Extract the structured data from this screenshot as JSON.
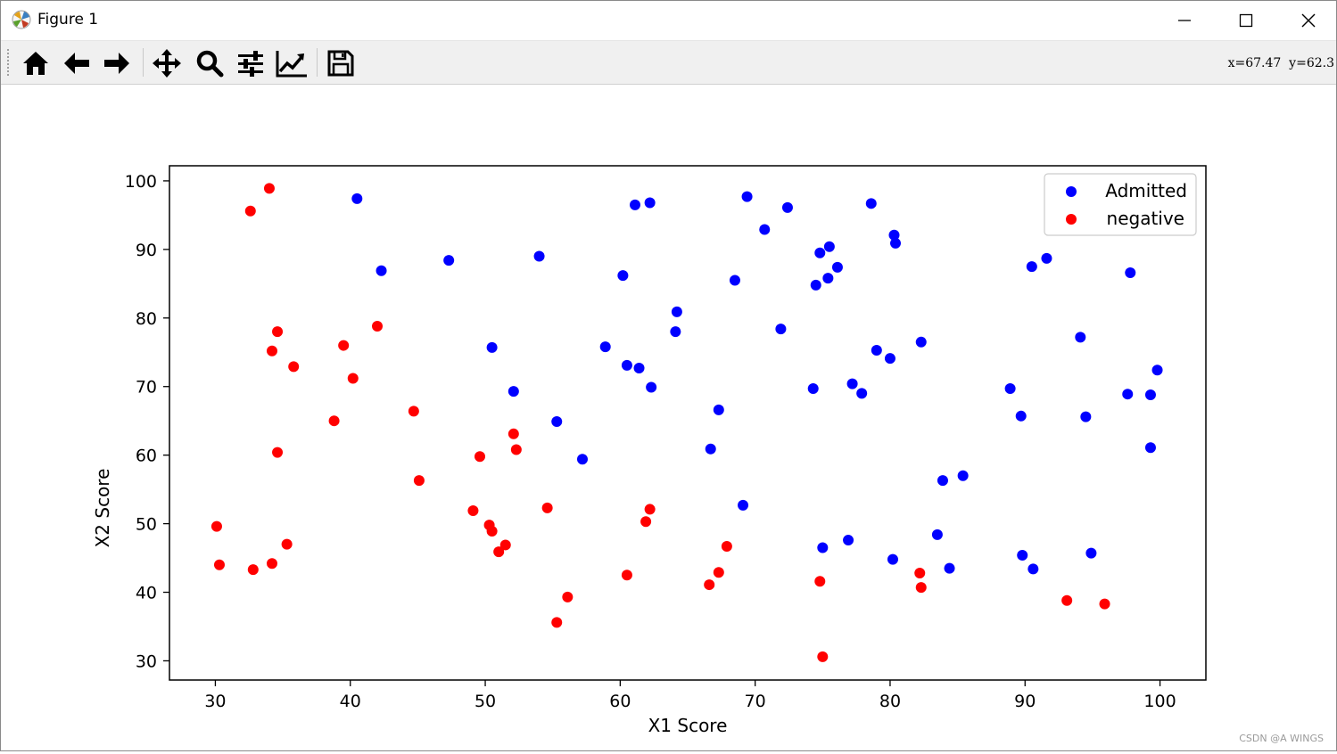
{
  "window": {
    "title": "Figure 1",
    "app_icon": "matplotlib-icon"
  },
  "controls": {
    "minimize": "minimize-icon",
    "maximize": "maximize-icon",
    "close": "close-icon"
  },
  "toolbar": {
    "buttons": [
      {
        "name": "home",
        "icon": "home-icon"
      },
      {
        "name": "back",
        "icon": "arrow-left-icon"
      },
      {
        "name": "forward",
        "icon": "arrow-right-icon"
      },
      {
        "name": "pan",
        "icon": "move-icon"
      },
      {
        "name": "zoom",
        "icon": "magnifier-icon"
      },
      {
        "name": "subplots",
        "icon": "sliders-icon"
      },
      {
        "name": "axes",
        "icon": "line-chart-icon"
      },
      {
        "name": "save",
        "icon": "floppy-disk-icon"
      }
    ],
    "coords": "x=67.47  y=62.3"
  },
  "chart_data": {
    "type": "scatter",
    "title": "",
    "xlabel": "X1 Score",
    "ylabel": "X2 Score",
    "xlim": [
      26.6,
      103.4
    ],
    "ylim": [
      27.2,
      102.2
    ],
    "xticks": [
      30,
      40,
      50,
      60,
      70,
      80,
      90,
      100
    ],
    "yticks": [
      30,
      40,
      50,
      60,
      70,
      80,
      90,
      100
    ],
    "legend_position": "top-right",
    "grid": false,
    "series": [
      {
        "name": "Admitted",
        "color": "#0000ff",
        "points": [
          [
            40.5,
            97.4
          ],
          [
            42.3,
            86.9
          ],
          [
            47.3,
            88.4
          ],
          [
            54.0,
            89.0
          ],
          [
            60.2,
            86.2
          ],
          [
            61.1,
            96.5
          ],
          [
            62.2,
            96.8
          ],
          [
            69.4,
            97.7
          ],
          [
            72.4,
            96.1
          ],
          [
            70.7,
            92.9
          ],
          [
            74.8,
            89.5
          ],
          [
            75.5,
            90.4
          ],
          [
            76.1,
            87.4
          ],
          [
            75.4,
            85.8
          ],
          [
            74.5,
            84.8
          ],
          [
            78.6,
            96.7
          ],
          [
            80.3,
            92.1
          ],
          [
            80.4,
            90.9
          ],
          [
            90.5,
            87.5
          ],
          [
            91.6,
            88.7
          ],
          [
            97.8,
            86.6
          ],
          [
            68.5,
            85.5
          ],
          [
            64.2,
            80.9
          ],
          [
            64.1,
            78.0
          ],
          [
            71.9,
            78.4
          ],
          [
            50.5,
            75.7
          ],
          [
            58.9,
            75.8
          ],
          [
            60.5,
            73.1
          ],
          [
            61.4,
            72.7
          ],
          [
            62.3,
            69.9
          ],
          [
            52.1,
            69.3
          ],
          [
            79.0,
            75.3
          ],
          [
            80.0,
            74.1
          ],
          [
            82.3,
            76.5
          ],
          [
            77.2,
            70.4
          ],
          [
            77.9,
            69.0
          ],
          [
            74.3,
            69.7
          ],
          [
            94.1,
            77.2
          ],
          [
            88.9,
            69.7
          ],
          [
            99.8,
            72.4
          ],
          [
            97.6,
            68.9
          ],
          [
            99.3,
            68.8
          ],
          [
            67.3,
            66.6
          ],
          [
            55.3,
            64.9
          ],
          [
            89.7,
            65.7
          ],
          [
            94.5,
            65.6
          ],
          [
            66.7,
            60.9
          ],
          [
            57.2,
            59.4
          ],
          [
            99.3,
            61.1
          ],
          [
            83.9,
            56.3
          ],
          [
            85.4,
            57.0
          ],
          [
            69.1,
            52.7
          ],
          [
            75.0,
            46.5
          ],
          [
            76.9,
            47.6
          ],
          [
            80.2,
            44.8
          ],
          [
            83.5,
            48.4
          ],
          [
            84.4,
            43.5
          ],
          [
            89.8,
            45.4
          ],
          [
            90.6,
            43.4
          ],
          [
            94.9,
            45.7
          ]
        ]
      },
      {
        "name": "negative",
        "color": "#ff0000",
        "points": [
          [
            34.0,
            98.9
          ],
          [
            32.6,
            95.6
          ],
          [
            34.6,
            78.0
          ],
          [
            34.2,
            75.2
          ],
          [
            35.8,
            72.9
          ],
          [
            39.5,
            76.0
          ],
          [
            42.0,
            78.8
          ],
          [
            40.2,
            71.2
          ],
          [
            38.8,
            65.0
          ],
          [
            44.7,
            66.4
          ],
          [
            34.6,
            60.4
          ],
          [
            45.1,
            56.3
          ],
          [
            49.6,
            59.8
          ],
          [
            52.1,
            63.1
          ],
          [
            52.3,
            60.8
          ],
          [
            30.1,
            49.6
          ],
          [
            30.3,
            44.0
          ],
          [
            32.8,
            43.3
          ],
          [
            34.2,
            44.2
          ],
          [
            35.3,
            47.0
          ],
          [
            49.1,
            51.9
          ],
          [
            50.3,
            49.8
          ],
          [
            50.5,
            48.9
          ],
          [
            51.5,
            46.9
          ],
          [
            51.0,
            45.9
          ],
          [
            54.6,
            52.3
          ],
          [
            62.2,
            52.1
          ],
          [
            61.9,
            50.3
          ],
          [
            55.3,
            35.6
          ],
          [
            56.1,
            39.3
          ],
          [
            60.5,
            42.5
          ],
          [
            66.6,
            41.1
          ],
          [
            67.3,
            42.9
          ],
          [
            67.9,
            46.7
          ],
          [
            74.8,
            41.6
          ],
          [
            75.0,
            30.6
          ],
          [
            82.2,
            42.8
          ],
          [
            82.3,
            40.7
          ],
          [
            93.1,
            38.8
          ],
          [
            95.9,
            38.3
          ]
        ]
      }
    ]
  },
  "watermark": "CSDN @A WINGS"
}
